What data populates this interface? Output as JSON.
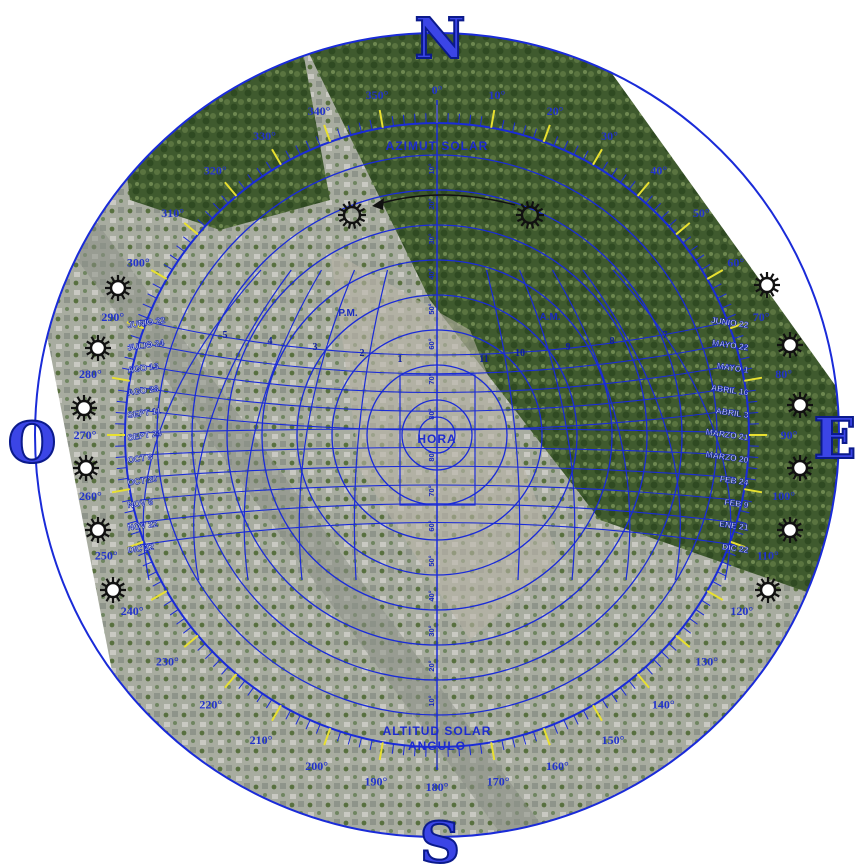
{
  "cardinals": {
    "north": "N",
    "south": "S",
    "east": "E",
    "west": "O"
  },
  "titles": {
    "azimuth": "AZIMUT SOLAR",
    "altitude": "ALTITUD SOLAR",
    "angle": "ANGULO",
    "hour": "HORA",
    "pm": "P.M.",
    "am": "A.M."
  },
  "outer_degrees": [
    {
      "deg": 0,
      "label": "0°"
    },
    {
      "deg": 10,
      "label": "10°"
    },
    {
      "deg": 20,
      "label": "20°"
    },
    {
      "deg": 30,
      "label": "30°"
    },
    {
      "deg": 40,
      "label": "40°"
    },
    {
      "deg": 50,
      "label": "50°"
    },
    {
      "deg": 60,
      "label": "60°"
    },
    {
      "deg": 70,
      "label": "70°"
    },
    {
      "deg": 80,
      "label": "80°"
    },
    {
      "deg": 90,
      "label": "90°"
    },
    {
      "deg": 100,
      "label": "100°"
    },
    {
      "deg": 110,
      "label": "110°"
    },
    {
      "deg": 120,
      "label": "120°"
    },
    {
      "deg": 130,
      "label": "130°"
    },
    {
      "deg": 140,
      "label": "140°"
    },
    {
      "deg": 150,
      "label": "150°"
    },
    {
      "deg": 160,
      "label": "160°"
    },
    {
      "deg": 170,
      "label": "170°"
    },
    {
      "deg": 180,
      "label": "180°"
    },
    {
      "deg": 190,
      "label": "190°"
    },
    {
      "deg": 200,
      "label": "200°"
    },
    {
      "deg": 210,
      "label": "210°"
    },
    {
      "deg": 220,
      "label": "220°"
    },
    {
      "deg": 230,
      "label": "230°"
    },
    {
      "deg": 240,
      "label": "240°"
    },
    {
      "deg": 250,
      "label": "250°"
    },
    {
      "deg": 260,
      "label": "260°"
    },
    {
      "deg": 270,
      "label": "270°"
    },
    {
      "deg": 280,
      "label": "280°"
    },
    {
      "deg": 290,
      "label": "290°"
    },
    {
      "deg": 300,
      "label": "300°"
    },
    {
      "deg": 310,
      "label": "310°"
    },
    {
      "deg": 320,
      "label": "320°"
    },
    {
      "deg": 330,
      "label": "330°"
    },
    {
      "deg": 340,
      "label": "340°"
    },
    {
      "deg": 350,
      "label": "350°"
    }
  ],
  "altitude_labels": [
    "10°",
    "20°",
    "30°",
    "40°",
    "50°",
    "60°",
    "70°",
    "80°"
  ],
  "left_dates": [
    "JUNIO 22",
    "JULIO 24",
    "AGO 13",
    "AGO 28",
    "SEPT 11",
    "SEPT 24",
    "OCT 8",
    "OCT 20",
    "NOV 6",
    "NOV 22",
    "DIC 22"
  ],
  "right_dates": [
    "JUNIO 22",
    "MAYO 22",
    "MAYO 1",
    "ABRIL 16",
    "ABRIL 3",
    "MARZO 21",
    "MARZO 20",
    "FEB 24",
    "FEB 9",
    "ENE 21",
    "DIC 22"
  ],
  "hours_pm": [
    "5",
    "4",
    "3",
    "2",
    "1"
  ],
  "hours_am": [
    "11",
    "10",
    "9",
    "8",
    "7"
  ],
  "colors": {
    "blue": "#1a2bd8",
    "dark_blue": "#0b1a8c",
    "tick_yellow": "#e8e030",
    "forest": "#3f5a2e",
    "urban": "#a3a79a"
  },
  "icons": {
    "sun": "sun-icon",
    "arrow": "path-arrow-icon"
  }
}
